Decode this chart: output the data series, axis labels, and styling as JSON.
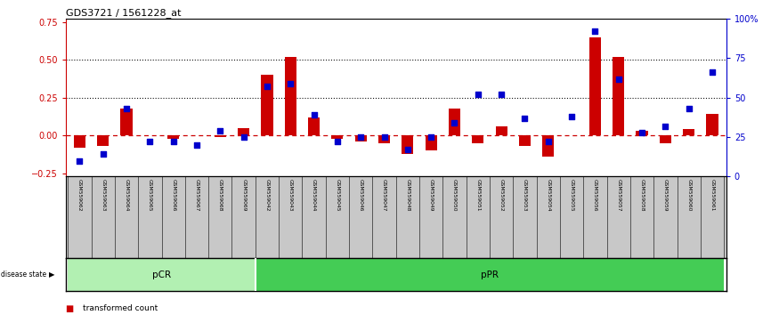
{
  "title": "GDS3721 / 1561228_at",
  "samples": [
    "GSM559062",
    "GSM559063",
    "GSM559064",
    "GSM559065",
    "GSM559066",
    "GSM559067",
    "GSM559068",
    "GSM559069",
    "GSM559042",
    "GSM559043",
    "GSM559044",
    "GSM559045",
    "GSM559046",
    "GSM559047",
    "GSM559048",
    "GSM559049",
    "GSM559050",
    "GSM559051",
    "GSM559052",
    "GSM559053",
    "GSM559054",
    "GSM559055",
    "GSM559056",
    "GSM559057",
    "GSM559058",
    "GSM559059",
    "GSM559060",
    "GSM559061"
  ],
  "red_values": [
    -0.08,
    -0.07,
    0.18,
    0.0,
    -0.02,
    0.0,
    -0.01,
    0.05,
    0.4,
    0.52,
    0.12,
    -0.02,
    -0.04,
    -0.05,
    -0.12,
    -0.1,
    0.18,
    -0.05,
    0.06,
    -0.07,
    -0.14,
    0.0,
    0.65,
    0.52,
    0.03,
    -0.05,
    0.04,
    0.14
  ],
  "blue_pct": [
    10,
    14,
    43,
    22,
    22,
    20,
    29,
    25,
    57,
    59,
    39,
    22,
    25,
    25,
    17,
    25,
    34,
    52,
    52,
    37,
    22,
    38,
    92,
    62,
    28,
    32,
    43,
    66
  ],
  "pcr_count": 8,
  "left_ylim": [
    -0.27,
    0.77
  ],
  "right_ylim": [
    0,
    100
  ],
  "left_yticks": [
    -0.25,
    0.0,
    0.25,
    0.5,
    0.75
  ],
  "right_yticks": [
    0,
    25,
    50,
    75,
    100
  ],
  "hline_values": [
    0.25,
    0.5
  ],
  "bg_color": "#ffffff",
  "red_color": "#cc0000",
  "blue_color": "#0000cc",
  "pcr_color": "#b2f0b2",
  "ppr_color": "#44cc55",
  "label_bg": "#c8c8c8",
  "zero_color": "#cc0000",
  "dot_color": "#111111"
}
